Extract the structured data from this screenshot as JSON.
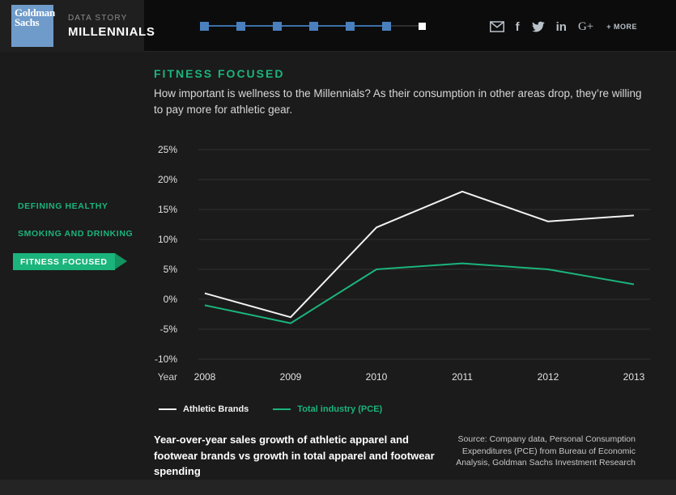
{
  "brand": {
    "logo_line1": "Goldman",
    "logo_line2": "Sachs",
    "kicker": "DATA STORY",
    "title": "MILLENNIALS"
  },
  "progress": {
    "total_steps": 7,
    "current_step": 7,
    "done_color": "#4a80bd",
    "done_line_color": "#3c6fa8",
    "pending_line_color": "#2e2e2e",
    "current_color": "#ffffff"
  },
  "share": {
    "facebook_label": "f",
    "linkedin_label": "in",
    "googleplus_label": "G+",
    "more_label": "+ MORE"
  },
  "sidebar": {
    "items": [
      {
        "label": "DEFINING HEALTHY",
        "active": false
      },
      {
        "label": "SMOKING AND DRINKING",
        "active": false
      },
      {
        "label": "FITNESS FOCUSED",
        "active": true
      }
    ]
  },
  "section": {
    "title": "FITNESS FOCUSED",
    "description": "How important is wellness to the Millennials? As their consumption in other areas drop, they’re willing to pay more for athletic gear."
  },
  "chart_data": {
    "type": "line",
    "categories": [
      "2008",
      "2009",
      "2010",
      "2011",
      "2012",
      "2013"
    ],
    "series": [
      {
        "name": "Athletic Brands",
        "color": "#f2f2f2",
        "values": [
          1,
          -3,
          12,
          18,
          13,
          14
        ]
      },
      {
        "name": "Total industry (PCE)",
        "color": "#1bb47c",
        "values": [
          -1,
          -4,
          5,
          6,
          5,
          2.5
        ]
      }
    ],
    "ylim": [
      -10,
      25
    ],
    "ytick_step": 5,
    "ytick_suffix": "%",
    "xlabel": "Year",
    "grid": true,
    "gridline_color": "#323232",
    "tick_label_color": "#e2e2e2",
    "legend_position": "bottom"
  },
  "caption": "Year-over-year sales growth of athletic apparel and footwear brands vs growth in total apparel and footwear spending",
  "source": "Source: Company data, Personal Consumption Expenditures (PCE) from Bureau of Economic Analysis, Goldman Sachs Investment Research",
  "colors": {
    "accent_green": "#1bb47c",
    "accent_green_dark": "#13935f",
    "logo_blue": "#6f9bca"
  }
}
